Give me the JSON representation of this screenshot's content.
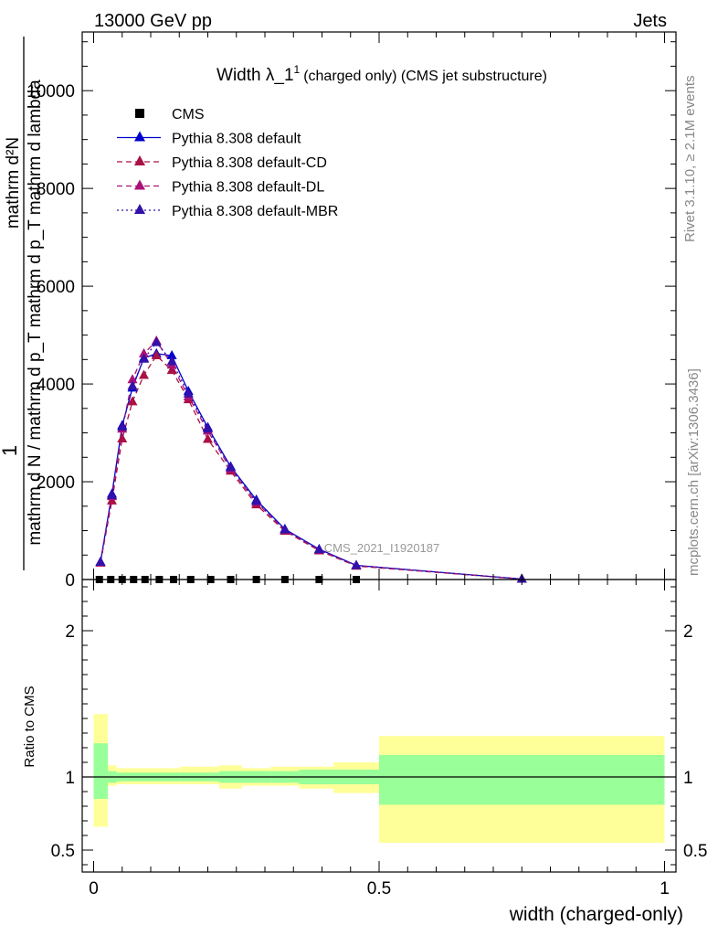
{
  "header": {
    "left": "13000 GeV pp",
    "right": "Jets"
  },
  "side_labels": {
    "rivet": "Rivet 3.1.10, ≥ 2.1M events",
    "mcplots": "mcplots.cern.ch [arXiv:1306.3436]"
  },
  "watermark": "CMS_2021_I1920187",
  "title": {
    "main": "Width λ_1",
    "sup": "1",
    "suffix": "(charged only) (CMS jet substructure)"
  },
  "y_axis_main": {
    "line1": "1",
    "line2": "mathrm d N / mathrm d p_T mathrm d p_T mathrm d lambda",
    "line3": "mathrm d²N"
  },
  "y_axis_ratio": "Ratio to CMS",
  "x_axis": "width (charged-only)",
  "legend": [
    {
      "name": "CMS",
      "color": "#000000",
      "marker": "square",
      "line": "none"
    },
    {
      "name": "Pythia 8.308 default",
      "color": "#0000cc",
      "marker": "triangle",
      "line": "solid"
    },
    {
      "name": "Pythia 8.308 default-CD",
      "color": "#aa1144",
      "marker": "triangle",
      "line": "dashed"
    },
    {
      "name": "Pythia 8.308 default-DL",
      "color": "#aa1177",
      "marker": "triangle",
      "line": "dashed"
    },
    {
      "name": "Pythia 8.308 default-MBR",
      "color": "#3311aa",
      "marker": "triangle",
      "line": "dotted"
    }
  ],
  "chart_data": {
    "type": "line",
    "xlim": [
      -0.02,
      1.02
    ],
    "ylim_main": [
      0,
      11200
    ],
    "ylim_ratio": [
      0.35,
      2.35
    ],
    "y_ticks_main": [
      {
        "v": 0,
        "label": "0"
      },
      {
        "v": 2000,
        "label": "2000"
      },
      {
        "v": 4000,
        "label": "4000"
      },
      {
        "v": 6000,
        "label": "6000"
      },
      {
        "v": 8000,
        "label": "8000"
      },
      {
        "v": 10000,
        "label": "10000"
      }
    ],
    "y_ticks_ratio": [
      {
        "v": 0.5,
        "label": "0.5"
      },
      {
        "v": 1,
        "label": "1"
      },
      {
        "v": 2,
        "label": "2"
      }
    ],
    "x_ticks": [
      {
        "v": 0,
        "label": "0"
      },
      {
        "v": 0.5,
        "label": "0.5"
      },
      {
        "v": 1,
        "label": "1"
      }
    ],
    "cms_x": [
      0.01,
      0.03,
      0.05,
      0.07,
      0.09,
      0.115,
      0.14,
      0.17,
      0.205,
      0.24,
      0.285,
      0.335,
      0.395,
      0.46
    ],
    "cms_y": [
      0,
      0,
      0,
      0,
      0,
      0,
      0,
      0,
      0,
      0,
      0,
      0,
      0,
      0
    ],
    "series": [
      {
        "name": "Pythia 8.308 default",
        "x": [
          0.012,
          0.032,
          0.05,
          0.068,
          0.088,
          0.11,
          0.137,
          0.166,
          0.2,
          0.24,
          0.285,
          0.335,
          0.395,
          0.46,
          0.75
        ],
        "y": [
          360,
          1750,
          3150,
          3920,
          4530,
          4620,
          4580,
          3850,
          3110,
          2310,
          1630,
          1030,
          620,
          290,
          10
        ]
      },
      {
        "name": "Pythia 8.308 default-CD",
        "x": [
          0.012,
          0.032,
          0.05,
          0.068,
          0.088,
          0.11,
          0.137,
          0.166,
          0.2,
          0.24,
          0.285,
          0.335,
          0.395,
          0.46,
          0.75
        ],
        "y": [
          340,
          1610,
          2880,
          3640,
          4180,
          4580,
          4280,
          3680,
          2870,
          2220,
          1530,
          990,
          590,
          275,
          10
        ]
      },
      {
        "name": "Pythia 8.308 default-DL",
        "x": [
          0.012,
          0.032,
          0.05,
          0.068,
          0.088,
          0.11,
          0.137,
          0.166,
          0.2,
          0.24,
          0.285,
          0.335,
          0.395,
          0.46,
          0.75
        ],
        "y": [
          350,
          1700,
          3080,
          4090,
          4620,
          4880,
          4390,
          3740,
          3040,
          2260,
          1580,
          1010,
          605,
          285,
          10
        ]
      },
      {
        "name": "Pythia 8.308 default-MBR",
        "x": [
          0.012,
          0.032,
          0.05,
          0.068,
          0.088,
          0.11,
          0.137,
          0.166,
          0.2,
          0.24,
          0.285,
          0.335,
          0.395,
          0.46,
          0.75
        ],
        "y": [
          355,
          1720,
          3120,
          3960,
          4510,
          4850,
          4460,
          3800,
          3080,
          2290,
          1600,
          1020,
          612,
          288,
          10
        ]
      }
    ],
    "ratio_bands": [
      {
        "x0": 0.0,
        "x1": 0.025,
        "inner": [
          0.85,
          1.23
        ],
        "outer": [
          0.66,
          1.43
        ]
      },
      {
        "x0": 0.025,
        "x1": 0.04,
        "inner": [
          0.96,
          1.04
        ],
        "outer": [
          0.94,
          1.08
        ]
      },
      {
        "x0": 0.04,
        "x1": 0.06,
        "inner": [
          0.97,
          1.03
        ],
        "outer": [
          0.95,
          1.06
        ]
      },
      {
        "x0": 0.06,
        "x1": 0.08,
        "inner": [
          0.97,
          1.03
        ],
        "outer": [
          0.95,
          1.06
        ]
      },
      {
        "x0": 0.08,
        "x1": 0.1,
        "inner": [
          0.97,
          1.03
        ],
        "outer": [
          0.95,
          1.06
        ]
      },
      {
        "x0": 0.1,
        "x1": 0.125,
        "inner": [
          0.97,
          1.03
        ],
        "outer": [
          0.95,
          1.06
        ]
      },
      {
        "x0": 0.125,
        "x1": 0.15,
        "inner": [
          0.97,
          1.03
        ],
        "outer": [
          0.95,
          1.06
        ]
      },
      {
        "x0": 0.15,
        "x1": 0.18,
        "inner": [
          0.97,
          1.03
        ],
        "outer": [
          0.95,
          1.07
        ]
      },
      {
        "x0": 0.18,
        "x1": 0.22,
        "inner": [
          0.97,
          1.03
        ],
        "outer": [
          0.95,
          1.07
        ]
      },
      {
        "x0": 0.22,
        "x1": 0.26,
        "inner": [
          0.96,
          1.04
        ],
        "outer": [
          0.92,
          1.08
        ]
      },
      {
        "x0": 0.26,
        "x1": 0.31,
        "inner": [
          0.96,
          1.04
        ],
        "outer": [
          0.94,
          1.06
        ]
      },
      {
        "x0": 0.31,
        "x1": 0.36,
        "inner": [
          0.96,
          1.04
        ],
        "outer": [
          0.94,
          1.07
        ]
      },
      {
        "x0": 0.36,
        "x1": 0.42,
        "inner": [
          0.95,
          1.05
        ],
        "outer": [
          0.92,
          1.07
        ]
      },
      {
        "x0": 0.42,
        "x1": 0.5,
        "inner": [
          0.95,
          1.05
        ],
        "outer": [
          0.89,
          1.1
        ]
      },
      {
        "x0": 0.5,
        "x1": 1.0,
        "inner": [
          0.81,
          1.15
        ],
        "outer": [
          0.55,
          1.28
        ]
      }
    ]
  }
}
